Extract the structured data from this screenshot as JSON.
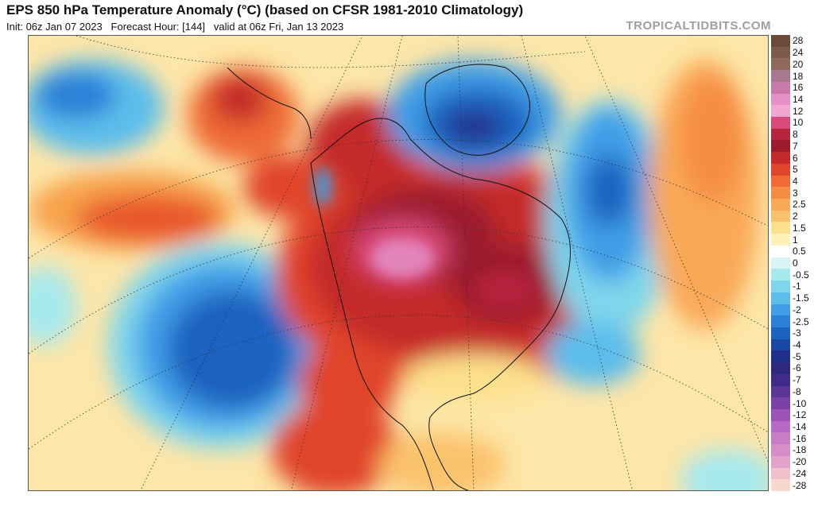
{
  "header": {
    "title": "EPS 850 hPa Temperature Anomaly (°C) (based on CFSR 1981-2010 Climatology)",
    "init": "Init: 06z Jan 07 2023",
    "forecast_hour": "Forecast Hour: [144]",
    "valid": "valid at 06z Fri, Jan 13 2023",
    "brand": "TROPICALTIDBITS.COM"
  },
  "legend": {
    "labels": [
      "28",
      "24",
      "20",
      "18",
      "16",
      "14",
      "12",
      "10",
      "8",
      "7",
      "6",
      "5",
      "4",
      "3",
      "2.5",
      "2",
      "1.5",
      "1",
      "0.5",
      "0",
      "-0.5",
      "-1",
      "-1.5",
      "-2",
      "-2.5",
      "-3",
      "-4",
      "-5",
      "-6",
      "-7",
      "-8",
      "-10",
      "-12",
      "-14",
      "-16",
      "-18",
      "-20",
      "-24",
      "-28"
    ],
    "colors": [
      "#6b4a3a",
      "#7d5a4a",
      "#8f6a5c",
      "#a8788f",
      "#c77aa8",
      "#e48fc6",
      "#f2a6d2",
      "#d84a78",
      "#b8243e",
      "#9c1c2e",
      "#c42a2a",
      "#e0452c",
      "#f06a32",
      "#f58c42",
      "#f9a957",
      "#fbc26c",
      "#fde08c",
      "#fff2b8",
      "#ffffff",
      "#d8f4f4",
      "#a6e9ee",
      "#7fd6ec",
      "#5cbdeb",
      "#3f9ee6",
      "#2a7fd6",
      "#1e62c0",
      "#1848a3",
      "#20308a",
      "#2c2a80",
      "#3f2c8a",
      "#5a3596",
      "#7a42a6",
      "#9b53b8",
      "#b66ac6",
      "#c77cc6",
      "#d58ec8",
      "#e2a3ca",
      "#f0c0cc",
      "#f8d8cc"
    ]
  },
  "map": {
    "regions": [
      "north-pacific-cold-anomaly",
      "north-america-warm-anomaly",
      "greenland-cold-anomaly",
      "north-atlantic-cold-anomaly",
      "alaska-warm-anomaly"
    ]
  }
}
